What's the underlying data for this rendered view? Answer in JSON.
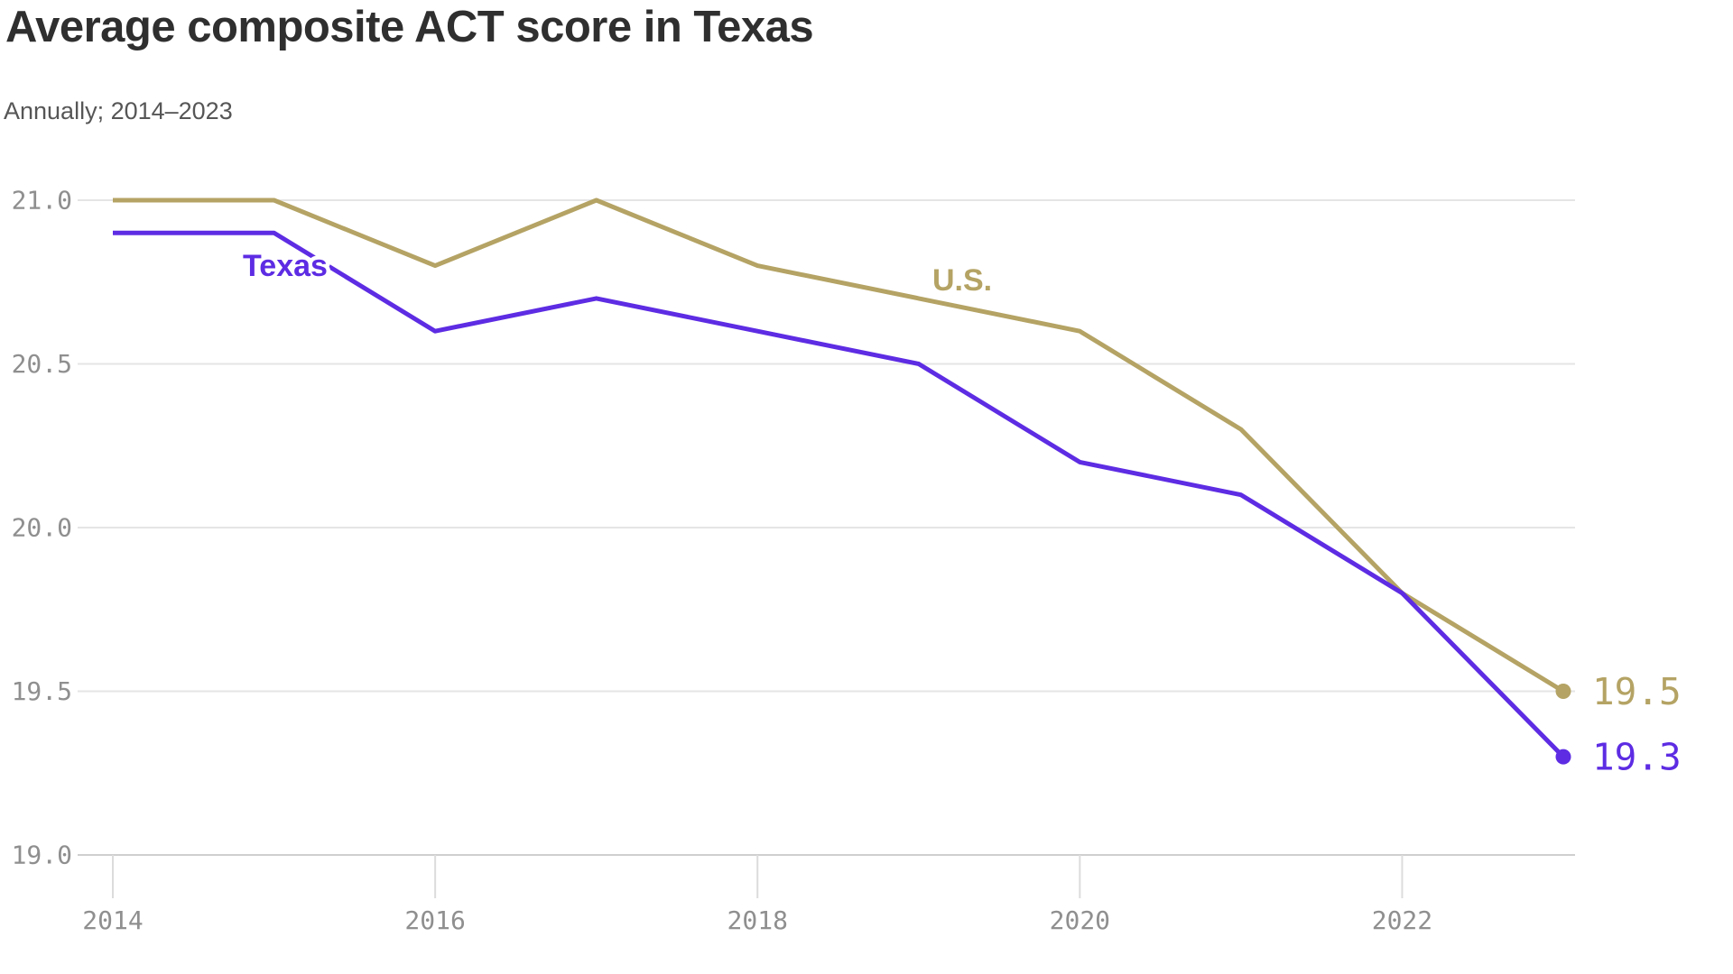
{
  "header": {
    "title": "Average composite ACT score in Texas",
    "subtitle": "Annually; 2014–2023"
  },
  "chart_data": {
    "type": "line",
    "title": "Average composite ACT score in Texas",
    "subtitle": "Annually; 2014–2023",
    "x": [
      2014,
      2015,
      2016,
      2017,
      2018,
      2019,
      2020,
      2021,
      2022,
      2023
    ],
    "x_ticks": [
      {
        "year": 2014,
        "label": "2014"
      },
      {
        "year": 2016,
        "label": "2016"
      },
      {
        "year": 2018,
        "label": "2018"
      },
      {
        "year": 2020,
        "label": "2020"
      },
      {
        "year": 2022,
        "label": "2022"
      }
    ],
    "ylim": [
      19.0,
      21.0
    ],
    "y_ticks": [
      {
        "value": 21.0,
        "label": "21.0"
      },
      {
        "value": 20.5,
        "label": "20.5"
      },
      {
        "value": 20.0,
        "label": "20.0"
      },
      {
        "value": 19.5,
        "label": "19.5"
      },
      {
        "value": 19.0,
        "label": "19.0"
      }
    ],
    "grid": true,
    "legend_position": "inline-labels",
    "series": [
      {
        "name": "U.S.",
        "color": "#b4a364",
        "values": [
          21.0,
          21.0,
          20.8,
          21.0,
          20.8,
          20.7,
          20.6,
          20.3,
          19.8,
          19.5
        ],
        "end_label": "19.5",
        "inline_label": {
          "text": "U.S.",
          "x": 1066,
          "y": 322
        }
      },
      {
        "name": "Texas",
        "color": "#5d2ce3",
        "values": [
          20.9,
          20.9,
          20.6,
          20.7,
          20.6,
          20.5,
          20.2,
          20.1,
          19.8,
          19.3
        ],
        "end_label": "19.3",
        "inline_label": {
          "text": "Texas",
          "x": 316,
          "y": 306
        }
      }
    ],
    "styles": {
      "gridline_color": "#e5e5e5",
      "baseline_color": "#cfcfcf",
      "tick_color": "#dcdcdc",
      "tick_text_color": "#8f8f8f"
    }
  }
}
